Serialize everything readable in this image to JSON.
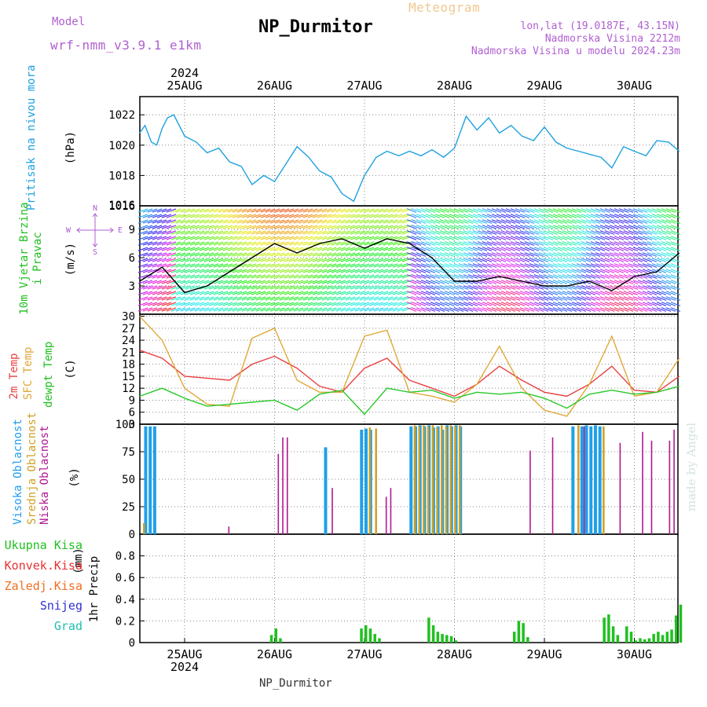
{
  "header": {
    "model_label": "Model",
    "model_name": "wrf-nmm_v3.9.1  e1km",
    "station": "NP_Durmitor",
    "product": "Meteogram",
    "coords": "lon,lat (19.0187E, 43.15N)",
    "elevation": "Nadmorska Visina 2212m",
    "model_elevation": "Nadmorska Visina u modelu 2024.23m",
    "watermark": "made by Angel"
  },
  "footer": {
    "station": "NP_Durmitor"
  },
  "time_axis": {
    "year": "2024",
    "days": [
      "25AUG",
      "26AUG",
      "27AUG",
      "28AUG",
      "29AUG",
      "30AUG"
    ]
  },
  "colors": {
    "pressure": "#1fa0e0",
    "temp2m": "#e84040",
    "sfc_temp": "#e0a838",
    "dewpt": "#28c828",
    "high_cloud": "#20a0e8",
    "mid_cloud": "#d0a020",
    "low_cloud": "#b01890",
    "total_precip": "#20c020",
    "conv_precip": "#e83030",
    "frozen_precip": "#f07020",
    "snow": "#3030d0",
    "hail": "#20c0b0"
  },
  "chart_data": [
    {
      "type": "line",
      "panel": "pressure",
      "ylabel": "Pritisak na nivou mora",
      "yunit": "(hPa)",
      "ylim": [
        1016,
        1023.2
      ],
      "yticks": [
        "1022",
        "1020",
        "1018",
        "1016"
      ],
      "grid": true,
      "series": [
        {
          "name": "Pritisak na nivou mora",
          "color": "#1fa0e0",
          "x": [
            0,
            0.06,
            0.13,
            0.19,
            0.25,
            0.31,
            0.38,
            0.5,
            0.63,
            0.75,
            0.88,
            1.0,
            1.13,
            1.25,
            1.38,
            1.5,
            1.63,
            1.75,
            1.88,
            2.0,
            2.13,
            2.25,
            2.38,
            2.5,
            2.63,
            2.75,
            2.88,
            3.0,
            3.13,
            3.25,
            3.38,
            3.5,
            3.63,
            3.75,
            3.88,
            4.0,
            4.13,
            4.25,
            4.38,
            4.5,
            4.63,
            4.75,
            4.88,
            5.0,
            5.13,
            5.25,
            5.38,
            5.5,
            5.63,
            5.75,
            5.88,
            6.0
          ],
          "y": [
            1020.8,
            1021.3,
            1020.2,
            1020.0,
            1021.1,
            1021.8,
            1022.0,
            1020.6,
            1020.2,
            1019.5,
            1019.8,
            1018.9,
            1018.6,
            1017.4,
            1018.0,
            1017.6,
            1018.8,
            1019.9,
            1019.2,
            1018.3,
            1017.9,
            1016.8,
            1016.3,
            1018.0,
            1019.2,
            1019.6,
            1019.3,
            1019.6,
            1019.3,
            1019.7,
            1019.2,
            1019.8,
            1021.9,
            1021.0,
            1021.8,
            1020.8,
            1021.3,
            1020.6,
            1020.3,
            1021.2,
            1020.2,
            1019.8,
            1019.6,
            1019.4,
            1019.2,
            1018.5,
            1019.9,
            1019.6,
            1019.3,
            1020.3,
            1020.2,
            1019.6
          ]
        }
      ]
    },
    {
      "type": "line",
      "panel": "wind",
      "ylabel": "10m Vjetar Brzina i Pravac",
      "yunit": "(m/s)",
      "legend": {
        "n": "N",
        "w": "W",
        "e": "E",
        "s": "S"
      },
      "ylim": [
        0,
        11.5
      ],
      "yticks": [
        "9",
        "6",
        "3"
      ],
      "grid": true,
      "series": [
        {
          "name": "10m Vjetar Brzina i Pravac",
          "color": "#000000",
          "x": [
            0,
            0.25,
            0.5,
            0.75,
            1.0,
            1.25,
            1.5,
            1.75,
            2.0,
            2.25,
            2.5,
            2.75,
            3.0,
            3.25,
            3.5,
            3.75,
            4.0,
            4.25,
            4.5,
            4.75,
            5.0,
            5.25,
            5.5,
            5.75,
            6.0
          ],
          "y": [
            3.5,
            5.0,
            2.3,
            3.0,
            4.5,
            6.0,
            7.5,
            6.5,
            7.5,
            8.0,
            7.0,
            8.0,
            7.5,
            6.0,
            3.5,
            3.5,
            4.0,
            3.5,
            3.0,
            3.0,
            3.5,
            2.5,
            4.0,
            4.5,
            6.5
          ]
        }
      ]
    },
    {
      "type": "line",
      "panel": "temperature",
      "yunit": "(C)",
      "ylim": [
        3,
        30.5
      ],
      "yticks": [
        "30",
        "27",
        "24",
        "21",
        "18",
        "15",
        "12",
        "9",
        "6",
        "3"
      ],
      "grid": true,
      "series": [
        {
          "name": "2m Temp",
          "color": "#e84040",
          "x": [
            0,
            0.25,
            0.5,
            0.75,
            1.0,
            1.25,
            1.5,
            1.75,
            2.0,
            2.25,
            2.5,
            2.75,
            3.0,
            3.25,
            3.5,
            3.75,
            4.0,
            4.25,
            4.5,
            4.75,
            5.0,
            5.25,
            5.5,
            5.75,
            6.0
          ],
          "y": [
            21.5,
            19.5,
            15.0,
            14.5,
            14.0,
            18.0,
            20.0,
            17.0,
            12.5,
            11.0,
            17.0,
            19.5,
            14.0,
            12.0,
            10.0,
            13.0,
            17.5,
            14.0,
            11.0,
            10.0,
            13.0,
            17.5,
            11.5,
            11.0,
            15.0
          ]
        },
        {
          "name": "SFC Temp",
          "color": "#e0a838",
          "x": [
            0,
            0.25,
            0.5,
            0.75,
            1.0,
            1.25,
            1.5,
            1.75,
            2.0,
            2.25,
            2.5,
            2.75,
            3.0,
            3.25,
            3.5,
            3.75,
            4.0,
            4.25,
            4.5,
            4.75,
            5.0,
            5.25,
            5.5,
            5.75,
            6.0
          ],
          "y": [
            30.0,
            24.0,
            12.0,
            8.0,
            7.5,
            24.5,
            27.0,
            14.0,
            11.0,
            11.0,
            25.0,
            26.5,
            11.0,
            10.0,
            8.5,
            13.0,
            22.5,
            12.0,
            6.5,
            5.0,
            13.0,
            25.0,
            10.0,
            11.0,
            19.5
          ]
        },
        {
          "name": "dewpt Temp",
          "color": "#28c828",
          "x": [
            0,
            0.25,
            0.5,
            0.75,
            1.0,
            1.25,
            1.5,
            1.75,
            2.0,
            2.25,
            2.5,
            2.75,
            3.0,
            3.25,
            3.5,
            3.75,
            4.0,
            4.25,
            4.5,
            4.75,
            5.0,
            5.25,
            5.5,
            5.75,
            6.0
          ],
          "y": [
            10.0,
            12.0,
            9.5,
            7.5,
            8.0,
            8.5,
            9.0,
            6.5,
            10.5,
            11.5,
            5.5,
            12.0,
            11.0,
            11.5,
            9.5,
            11.0,
            10.5,
            11.0,
            9.5,
            7.0,
            10.5,
            11.5,
            10.5,
            11.0,
            12.5
          ]
        }
      ]
    },
    {
      "type": "bar",
      "panel": "cloud",
      "yunit": "(%)",
      "ylim": [
        0,
        100
      ],
      "yticks": [
        "100",
        "75",
        "50",
        "25",
        "0"
      ],
      "grid": true,
      "series": [
        {
          "name": "Visoka Oblacnost",
          "color": "#20a0e8",
          "x": [
            0.05,
            0.1,
            0.15,
            2.05,
            2.45,
            2.5,
            2.55,
            3.0,
            3.05,
            3.1,
            3.15,
            3.2,
            3.25,
            3.3,
            3.35,
            3.4,
            3.45,
            3.5,
            3.55,
            4.8,
            4.9,
            4.95,
            5.0,
            5.05,
            5.1
          ],
          "y": [
            98,
            98,
            98,
            79,
            95,
            96,
            95,
            98,
            98,
            99,
            98,
            99,
            97,
            98,
            95,
            99,
            98,
            99,
            98,
            98,
            98,
            99,
            98,
            99,
            98
          ]
        },
        {
          "name": "Srednja Oblacnost",
          "color": "#d0a020",
          "x": [
            0.02,
            2.53,
            2.6,
            3.03,
            3.08,
            3.13,
            3.18,
            3.23,
            3.28,
            3.33,
            3.38,
            3.43,
            3.48,
            3.53,
            4.85,
            5.13
          ],
          "y": [
            10,
            97,
            96,
            99,
            98,
            99,
            98,
            99,
            97,
            99,
            98,
            99,
            98,
            99,
            99,
            98
          ]
        },
        {
          "name": "Niska Oblacnost",
          "color": "#b01890",
          "x": [
            0.95,
            1.5,
            1.55,
            1.6,
            2.1,
            2.7,
            2.75,
            4.3,
            4.55,
            4.9,
            5.3,
            5.55,
            5.65,
            5.85,
            5.9
          ],
          "y": [
            7,
            73,
            88,
            88,
            42,
            34,
            42,
            76,
            88,
            98,
            83,
            93,
            85,
            85,
            95
          ]
        }
      ]
    },
    {
      "type": "bar",
      "panel": "precipitation",
      "ylabel": "1hr Precip",
      "yunit": "(mm)",
      "ylim": [
        0,
        1.0
      ],
      "yticks": [
        "0.8",
        "0.6",
        "0.4",
        "0.2",
        "0"
      ],
      "grid": true,
      "series": [
        {
          "name": "Ukupna Kisa",
          "color": "#20c020",
          "x": [
            1.45,
            1.5,
            1.55,
            2.45,
            2.5,
            2.55,
            2.6,
            2.65,
            3.2,
            3.25,
            3.3,
            3.35,
            3.4,
            3.45,
            3.5,
            4.15,
            4.2,
            4.25,
            4.3,
            5.15,
            5.2,
            5.25,
            5.3,
            5.4,
            5.45,
            5.5,
            5.55,
            5.6,
            5.65,
            5.7,
            5.75,
            5.8,
            5.85,
            5.9,
            5.95,
            6.0
          ],
          "y": [
            0.07,
            0.13,
            0.04,
            0.13,
            0.16,
            0.13,
            0.08,
            0.04,
            0.23,
            0.16,
            0.1,
            0.08,
            0.07,
            0.06,
            0.02,
            0.1,
            0.2,
            0.18,
            0.05,
            0.23,
            0.26,
            0.15,
            0.07,
            0.15,
            0.1,
            0.02,
            0.04,
            0.03,
            0.04,
            0.08,
            0.1,
            0.07,
            0.1,
            0.12,
            0.25,
            0.35
          ]
        },
        {
          "name": "Konvek.Kisa",
          "color": "#e83030",
          "x": [],
          "y": []
        },
        {
          "name": "Zaledj.Kisa",
          "color": "#f07020",
          "x": [],
          "y": []
        },
        {
          "name": "Snijeg",
          "color": "#3030d0",
          "x": [],
          "y": []
        },
        {
          "name": "Grad",
          "color": "#20c0b0",
          "x": [],
          "y": []
        }
      ]
    }
  ]
}
